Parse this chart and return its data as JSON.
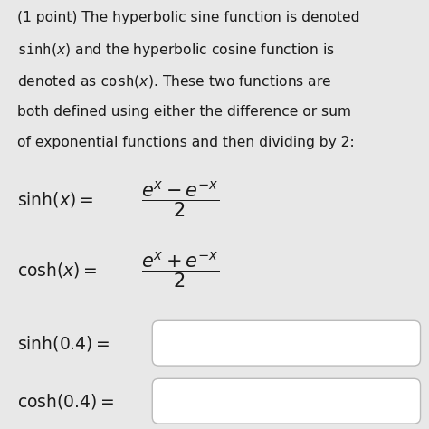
{
  "background_color": "#e8e8e8",
  "text_color": "#1a1a1a",
  "fig_width": 4.74,
  "fig_height": 4.74,
  "dpi": 100,
  "para_lines": [
    "(1 point) The hyperbolic sine function is denoted",
    "sinh(x) and the hyperbolic cosine function is",
    "denoted as cosh(x). These two functions are",
    "both defined using either the difference or sum",
    "of exponential functions and then dividing by 2:"
  ],
  "para_fontsize": 11.2,
  "formula_fontsize": 15,
  "label_fontsize": 13.5,
  "box_edge_color": "#bbbbbb",
  "box_face_color": "#ffffff"
}
